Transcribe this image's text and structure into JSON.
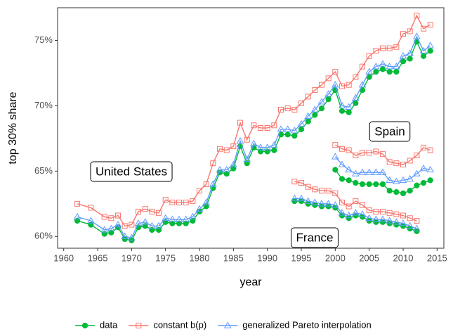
{
  "chart_data": {
    "type": "line",
    "y_label": "top 30% share",
    "x_label": "year",
    "xlim": [
      1959.1,
      2016.0
    ],
    "ylim": [
      59.1,
      77.5
    ],
    "xticks": [
      1960,
      1965,
      1970,
      1975,
      1980,
      1985,
      1990,
      1995,
      2000,
      2005,
      2010,
      2015
    ],
    "yticks": [
      {
        "value": 60,
        "label": "60%"
      },
      {
        "value": 65,
        "label": "65%"
      },
      {
        "value": 70,
        "label": "70%"
      },
      {
        "value": 75,
        "label": "75%"
      }
    ],
    "annotations": [
      "United States",
      "Spain",
      "France"
    ],
    "legend": "bottom",
    "series": [
      {
        "name": "data",
        "color": "#00ba38",
        "marker": "circle",
        "groups": [
          {
            "x": [
              1962,
              1964,
              1966,
              1967,
              1968,
              1969,
              1970,
              1971,
              1972,
              1973,
              1974,
              1975,
              1976,
              1977,
              1978,
              1979,
              1980,
              1981,
              1982,
              1983,
              1984,
              1985,
              1986,
              1987,
              1988,
              1989,
              1990,
              1991,
              1992,
              1993,
              1994,
              1995,
              1996,
              1997,
              1998,
              1999,
              2000,
              2001,
              2002,
              2003,
              2004,
              2005,
              2006,
              2007,
              2008,
              2009,
              2010,
              2011,
              2012,
              2013,
              2014
            ],
            "values": [
              61.2,
              60.9,
              60.2,
              60.3,
              60.7,
              59.8,
              59.7,
              60.7,
              60.8,
              60.5,
              60.5,
              61.1,
              61.0,
              61.0,
              61.0,
              61.2,
              61.9,
              62.3,
              63.7,
              64.9,
              64.8,
              65.2,
              66.9,
              65.6,
              66.8,
              66.5,
              66.5,
              66.6,
              67.8,
              67.8,
              67.7,
              68.2,
              68.8,
              69.3,
              69.8,
              70.5,
              71.2,
              69.6,
              69.5,
              70.2,
              71.2,
              72.2,
              72.6,
              72.8,
              72.6,
              72.6,
              73.4,
              73.6,
              74.9,
              73.8,
              74.2
            ]
          },
          {
            "x": [
              1994,
              1995,
              1996,
              1997,
              1998,
              1999,
              2000,
              2001,
              2002,
              2003,
              2004,
              2005,
              2006,
              2007,
              2008,
              2009,
              2010,
              2011,
              2012
            ],
            "values": [
              62.7,
              62.7,
              62.5,
              62.4,
              62.3,
              62.3,
              62.2,
              61.6,
              61.4,
              61.6,
              61.5,
              61.2,
              61.1,
              61.1,
              61.0,
              60.9,
              60.8,
              60.6,
              60.4
            ]
          },
          {
            "x": [
              2000,
              2001,
              2002,
              2003,
              2004,
              2005,
              2006,
              2007,
              2008,
              2009,
              2010,
              2011,
              2012,
              2013,
              2014
            ],
            "values": [
              65.1,
              64.4,
              64.3,
              64.1,
              64.0,
              64.0,
              64.0,
              64.0,
              63.5,
              63.4,
              63.3,
              63.5,
              63.9,
              64.1,
              64.3
            ]
          }
        ]
      },
      {
        "name": "constant b(p)",
        "color": "#f8766d",
        "marker": "square",
        "groups": [
          {
            "x": [
              1962,
              1964,
              1966,
              1967,
              1968,
              1969,
              1970,
              1971,
              1972,
              1973,
              1974,
              1975,
              1976,
              1977,
              1978,
              1979,
              1980,
              1981,
              1982,
              1983,
              1984,
              1985,
              1986,
              1987,
              1988,
              1989,
              1990,
              1991,
              1992,
              1993,
              1994,
              1995,
              1996,
              1997,
              1998,
              1999,
              2000,
              2001,
              2002,
              2003,
              2004,
              2005,
              2006,
              2007,
              2008,
              2009,
              2010,
              2011,
              2012,
              2013,
              2014
            ],
            "values": [
              62.5,
              62.2,
              61.5,
              61.4,
              61.6,
              60.8,
              60.9,
              61.9,
              62.1,
              61.9,
              61.8,
              62.8,
              62.6,
              62.6,
              62.6,
              62.7,
              63.5,
              64.0,
              65.6,
              66.7,
              66.6,
              66.9,
              68.7,
              67.4,
              68.5,
              68.3,
              68.3,
              68.5,
              69.7,
              69.8,
              69.7,
              70.2,
              70.7,
              71.2,
              71.6,
              72.1,
              72.6,
              71.5,
              71.6,
              72.2,
              73.0,
              73.8,
              74.2,
              74.4,
              74.4,
              74.5,
              75.5,
              75.7,
              76.9,
              75.9,
              76.2
            ]
          },
          {
            "x": [
              1994,
              1995,
              1996,
              1997,
              1998,
              1999,
              2000,
              2001,
              2002,
              2003,
              2004,
              2005,
              2006,
              2007,
              2008,
              2009,
              2010,
              2011,
              2012
            ],
            "values": [
              64.2,
              64.1,
              63.8,
              63.6,
              63.5,
              63.5,
              63.3,
              62.6,
              62.3,
              62.7,
              62.4,
              62.0,
              61.9,
              61.9,
              61.8,
              61.7,
              61.6,
              61.4,
              61.2
            ]
          },
          {
            "x": [
              2000,
              2001,
              2002,
              2003,
              2004,
              2005,
              2006,
              2007,
              2008,
              2009,
              2010,
              2011,
              2012,
              2013,
              2014
            ],
            "values": [
              67.0,
              66.7,
              66.6,
              66.2,
              66.4,
              66.4,
              66.5,
              66.3,
              65.7,
              65.6,
              65.5,
              65.8,
              66.2,
              66.8,
              66.6
            ]
          }
        ]
      },
      {
        "name": "generalized Pareto interpolation",
        "color": "#619cff",
        "marker": "triangle",
        "groups": [
          {
            "x": [
              1962,
              1964,
              1966,
              1967,
              1968,
              1969,
              1970,
              1971,
              1972,
              1973,
              1974,
              1975,
              1976,
              1977,
              1978,
              1979,
              1980,
              1981,
              1982,
              1983,
              1984,
              1985,
              1986,
              1987,
              1988,
              1989,
              1990,
              1991,
              1992,
              1993,
              1994,
              1995,
              1996,
              1997,
              1998,
              1999,
              2000,
              2001,
              2002,
              2003,
              2004,
              2005,
              2006,
              2007,
              2008,
              2009,
              2010,
              2011,
              2012,
              2013,
              2014
            ],
            "values": [
              61.5,
              61.2,
              60.5,
              60.6,
              60.9,
              60.0,
              59.9,
              61.0,
              61.1,
              60.8,
              60.8,
              61.4,
              61.3,
              61.3,
              61.3,
              61.5,
              62.1,
              62.6,
              64.0,
              65.1,
              65.1,
              65.5,
              67.3,
              65.9,
              67.1,
              66.8,
              66.8,
              67.0,
              68.2,
              68.2,
              68.1,
              68.6,
              69.2,
              69.7,
              70.3,
              70.9,
              71.6,
              70.0,
              69.9,
              70.6,
              71.6,
              72.6,
              73.0,
              73.2,
              73.0,
              73.0,
              73.8,
              74.0,
              75.3,
              74.2,
              74.6
            ]
          },
          {
            "x": [
              1994,
              1995,
              1996,
              1997,
              1998,
              1999,
              2000,
              2001,
              2002,
              2003,
              2004,
              2005,
              2006,
              2007,
              2008,
              2009,
              2010,
              2011,
              2012
            ],
            "values": [
              62.9,
              62.9,
              62.7,
              62.6,
              62.5,
              62.5,
              62.4,
              61.8,
              61.6,
              61.8,
              61.7,
              61.4,
              61.3,
              61.3,
              61.2,
              61.1,
              61.0,
              60.8,
              60.6
            ]
          },
          {
            "x": [
              2000,
              2001,
              2002,
              2003,
              2004,
              2005,
              2006,
              2007,
              2008,
              2009,
              2010,
              2011,
              2012,
              2013,
              2014
            ],
            "values": [
              66.1,
              65.5,
              65.1,
              64.8,
              64.9,
              64.9,
              64.9,
              64.9,
              64.3,
              64.2,
              64.3,
              64.4,
              64.8,
              65.2,
              65.1
            ]
          }
        ]
      }
    ]
  }
}
